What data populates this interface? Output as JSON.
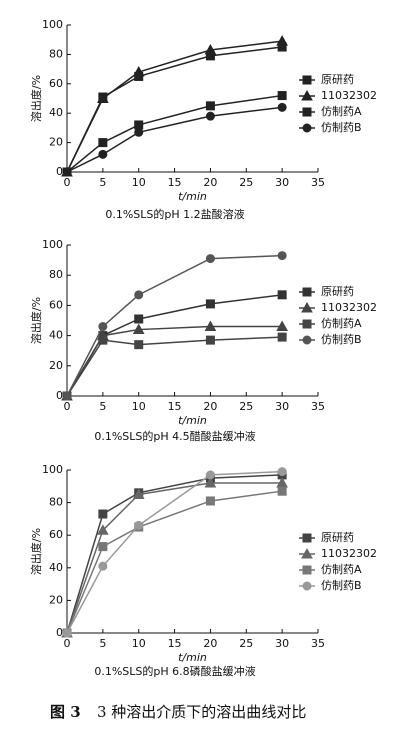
{
  "chart_data": [
    {
      "type": "line",
      "title": "0.1%SLS的pH 1.2盐酸溶液",
      "xlabel": "t/min",
      "ylabel": "溶出度/%",
      "x": [
        0,
        5,
        10,
        20,
        30
      ],
      "xlim": [
        0,
        35
      ],
      "xticks": [
        0,
        5,
        10,
        15,
        20,
        25,
        30,
        35
      ],
      "ylim": [
        0,
        100
      ],
      "yticks": [
        0,
        20,
        40,
        60,
        80,
        100
      ],
      "grid": false,
      "series": [
        {
          "name": "原研药",
          "color": "#222222",
          "marker": "square",
          "values": [
            0,
            51,
            65,
            79,
            85
          ]
        },
        {
          "name": "11032302",
          "color": "#222222",
          "marker": "triangle",
          "values": [
            0,
            50,
            68,
            83,
            89
          ]
        },
        {
          "name": "仿制药A",
          "color": "#222222",
          "marker": "square",
          "values": [
            0,
            20,
            32,
            45,
            52
          ]
        },
        {
          "name": "仿制药B",
          "color": "#222222",
          "marker": "circle",
          "values": [
            0,
            12,
            27,
            38,
            44
          ]
        }
      ]
    },
    {
      "type": "line",
      "title": "0.1%SLS的pH 4.5醋酸盐缓冲液",
      "xlabel": "t/min",
      "ylabel": "溶出度/%",
      "x": [
        0,
        5,
        10,
        20,
        30
      ],
      "xlim": [
        0,
        35
      ],
      "xticks": [
        0,
        5,
        10,
        15,
        20,
        25,
        30,
        35
      ],
      "ylim": [
        0,
        100
      ],
      "yticks": [
        0,
        20,
        40,
        60,
        80,
        100
      ],
      "grid": false,
      "series": [
        {
          "name": "原研药",
          "color": "#333333",
          "marker": "square",
          "values": [
            0,
            40,
            51,
            61,
            67
          ]
        },
        {
          "name": "11032302",
          "color": "#444444",
          "marker": "triangle",
          "values": [
            0,
            40,
            44,
            46,
            46
          ]
        },
        {
          "name": "仿制药A",
          "color": "#444444",
          "marker": "square",
          "values": [
            0,
            37,
            34,
            37,
            39
          ]
        },
        {
          "name": "仿制药B",
          "color": "#555555",
          "marker": "circle",
          "values": [
            0,
            46,
            67,
            91,
            93
          ]
        }
      ]
    },
    {
      "type": "line",
      "title": "0.1%SLS的pH 6.8磷酸盐缓冲液",
      "xlabel": "t/min",
      "ylabel": "溶出度/%",
      "x": [
        0,
        5,
        10,
        20,
        30
      ],
      "xlim": [
        0,
        35
      ],
      "xticks": [
        0,
        5,
        10,
        15,
        20,
        25,
        30,
        35
      ],
      "ylim": [
        0,
        100
      ],
      "yticks": [
        0,
        20,
        40,
        60,
        80,
        100
      ],
      "grid": false,
      "series": [
        {
          "name": "原研药",
          "color": "#444444",
          "marker": "square",
          "values": [
            0,
            73,
            86,
            95,
            97
          ]
        },
        {
          "name": "11032302",
          "color": "#666666",
          "marker": "triangle",
          "values": [
            0,
            63,
            85,
            92,
            92
          ]
        },
        {
          "name": "仿制药A",
          "color": "#777777",
          "marker": "square",
          "values": [
            0,
            53,
            65,
            81,
            87
          ]
        },
        {
          "name": "仿制药B",
          "color": "#999999",
          "marker": "circle",
          "values": [
            0,
            41,
            66,
            97,
            99
          ]
        }
      ]
    }
  ],
  "caption": {
    "label": "图 3",
    "text": "3 种溶出介质下的溶出曲线对比"
  }
}
